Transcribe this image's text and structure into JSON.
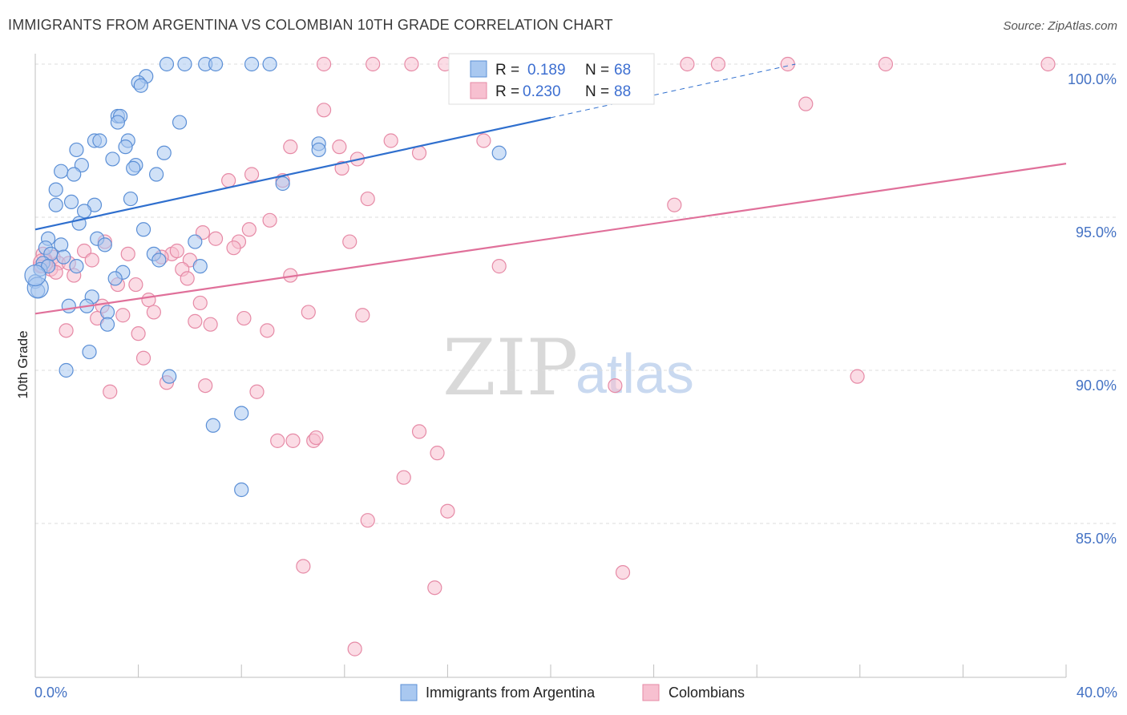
{
  "header": {
    "title": "IMMIGRANTS FROM ARGENTINA VS COLOMBIAN 10TH GRADE CORRELATION CHART",
    "source": "Source: ZipAtlas.com"
  },
  "watermark": {
    "zip": "ZIP",
    "atlas": "atlas"
  },
  "colors": {
    "blue_fill": "#a9c8f0",
    "blue_stroke": "#5b8fd6",
    "blue_line": "#2f6fce",
    "pink_fill": "#f7c0d0",
    "pink_stroke": "#e68aa6",
    "pink_line": "#e0709a",
    "tick_label": "#4472c4",
    "grid": "#dddddd"
  },
  "legend": {
    "r_label": "R =",
    "n_label": "N =",
    "series": [
      {
        "r": "0.189",
        "n": "68"
      },
      {
        "r": "0.230",
        "n": "88"
      }
    ]
  },
  "chart_data": {
    "type": "scatter",
    "title": "IMMIGRANTS FROM ARGENTINA VS COLOMBIAN 10TH GRADE CORRELATION CHART",
    "xlabel": "",
    "ylabel": "10th Grade",
    "xlim": [
      0,
      40
    ],
    "ylim": [
      80.5,
      100.7
    ],
    "x_tick_labels": [
      "0.0%",
      "40.0%"
    ],
    "y_ticks": [
      85,
      90,
      95,
      100
    ],
    "y_tick_labels": [
      "85.0%",
      "90.0%",
      "95.0%",
      "100.0%"
    ],
    "grid": true,
    "legend_position": "top-center",
    "series": [
      {
        "name": "Immigrants from Argentina",
        "trend": {
          "x": [
            0,
            20
          ],
          "y": [
            94.6,
            98.25
          ],
          "dashed_to": [
            29.5,
            100.0
          ]
        },
        "points": [
          [
            5.1,
            100
          ],
          [
            5.8,
            100
          ],
          [
            6.6,
            100
          ],
          [
            7.0,
            100
          ],
          [
            8.4,
            100
          ],
          [
            9.1,
            100
          ],
          [
            4.3,
            99.6
          ],
          [
            4.0,
            99.4
          ],
          [
            4.1,
            99.3
          ],
          [
            3.2,
            98.3
          ],
          [
            3.3,
            98.3
          ],
          [
            3.2,
            98.1
          ],
          [
            5.6,
            98.1
          ],
          [
            2.3,
            97.5
          ],
          [
            2.5,
            97.5
          ],
          [
            3.6,
            97.5
          ],
          [
            3.5,
            97.3
          ],
          [
            1.6,
            97.2
          ],
          [
            11.0,
            97.4
          ],
          [
            5.0,
            97.1
          ],
          [
            18.0,
            97.1
          ],
          [
            11.0,
            97.2
          ],
          [
            3.0,
            96.9
          ],
          [
            1.8,
            96.7
          ],
          [
            3.9,
            96.7
          ],
          [
            1.0,
            96.5
          ],
          [
            3.8,
            96.6
          ],
          [
            1.5,
            96.4
          ],
          [
            4.7,
            96.4
          ],
          [
            9.6,
            96.1
          ],
          [
            0.8,
            95.9
          ],
          [
            1.4,
            95.5
          ],
          [
            3.7,
            95.6
          ],
          [
            0.8,
            95.4
          ],
          [
            2.3,
            95.4
          ],
          [
            1.9,
            95.2
          ],
          [
            1.7,
            94.8
          ],
          [
            4.2,
            94.6
          ],
          [
            0.5,
            94.3
          ],
          [
            2.4,
            94.3
          ],
          [
            6.2,
            94.2
          ],
          [
            1.0,
            94.1
          ],
          [
            2.7,
            94.1
          ],
          [
            0.4,
            94.0
          ],
          [
            0.6,
            93.8
          ],
          [
            4.6,
            93.8
          ],
          [
            4.8,
            93.6
          ],
          [
            0.3,
            93.5
          ],
          [
            1.6,
            93.4
          ],
          [
            6.4,
            93.4
          ],
          [
            3.4,
            93.2
          ],
          [
            3.1,
            93.0
          ],
          [
            0.0,
            92.9
          ],
          [
            0.1,
            92.6
          ],
          [
            2.2,
            92.4
          ],
          [
            1.3,
            92.1
          ],
          [
            2.0,
            92.1
          ],
          [
            2.8,
            91.9
          ],
          [
            2.8,
            91.5
          ],
          [
            2.1,
            90.6
          ],
          [
            1.2,
            90.0
          ],
          [
            5.2,
            89.8
          ],
          [
            8.0,
            88.6
          ],
          [
            6.9,
            88.2
          ],
          [
            8.0,
            86.1
          ],
          [
            0.2,
            93.3
          ],
          [
            0.5,
            93.4
          ],
          [
            1.1,
            93.7
          ]
        ]
      },
      {
        "name": "Colombians",
        "trend": {
          "x": [
            0,
            40
          ],
          "y": [
            91.85,
            96.75
          ]
        },
        "points": [
          [
            11.2,
            100
          ],
          [
            13.1,
            100
          ],
          [
            14.6,
            100
          ],
          [
            15.9,
            100
          ],
          [
            23.7,
            100
          ],
          [
            25.3,
            100
          ],
          [
            26.5,
            100
          ],
          [
            29.2,
            100
          ],
          [
            33.0,
            100
          ],
          [
            39.3,
            100
          ],
          [
            11.2,
            98.5
          ],
          [
            29.9,
            98.7
          ],
          [
            9.9,
            97.3
          ],
          [
            11.8,
            97.3
          ],
          [
            13.8,
            97.5
          ],
          [
            17.4,
            97.5
          ],
          [
            14.9,
            97.1
          ],
          [
            12.5,
            96.9
          ],
          [
            11.9,
            96.6
          ],
          [
            8.4,
            96.4
          ],
          [
            7.5,
            96.2
          ],
          [
            9.6,
            96.2
          ],
          [
            12.9,
            95.6
          ],
          [
            24.8,
            95.4
          ],
          [
            9.1,
            94.9
          ],
          [
            8.3,
            94.6
          ],
          [
            6.5,
            94.5
          ],
          [
            7.0,
            94.3
          ],
          [
            7.9,
            94.2
          ],
          [
            12.2,
            94.2
          ],
          [
            2.7,
            94.2
          ],
          [
            7.7,
            94.0
          ],
          [
            1.9,
            93.9
          ],
          [
            3.6,
            93.8
          ],
          [
            5.3,
            93.8
          ],
          [
            5.5,
            93.9
          ],
          [
            4.9,
            93.7
          ],
          [
            0.7,
            93.7
          ],
          [
            2.2,
            93.6
          ],
          [
            6.0,
            93.6
          ],
          [
            18.0,
            93.4
          ],
          [
            5.7,
            93.3
          ],
          [
            0.9,
            93.5
          ],
          [
            1.3,
            93.5
          ],
          [
            0.2,
            93.4
          ],
          [
            0.4,
            93.6
          ],
          [
            0.6,
            93.3
          ],
          [
            1.5,
            93.1
          ],
          [
            5.9,
            93.0
          ],
          [
            9.9,
            93.1
          ],
          [
            3.2,
            92.8
          ],
          [
            3.9,
            92.8
          ],
          [
            4.4,
            92.3
          ],
          [
            6.4,
            92.2
          ],
          [
            2.6,
            92.1
          ],
          [
            4.6,
            91.9
          ],
          [
            10.6,
            91.9
          ],
          [
            12.7,
            91.8
          ],
          [
            3.4,
            91.8
          ],
          [
            8.1,
            91.7
          ],
          [
            2.4,
            91.7
          ],
          [
            6.2,
            91.6
          ],
          [
            6.8,
            91.5
          ],
          [
            9.0,
            91.3
          ],
          [
            1.2,
            91.3
          ],
          [
            4.0,
            91.2
          ],
          [
            4.2,
            90.4
          ],
          [
            31.9,
            89.8
          ],
          [
            5.1,
            89.6
          ],
          [
            22.5,
            89.5
          ],
          [
            6.6,
            89.5
          ],
          [
            2.9,
            89.3
          ],
          [
            8.6,
            89.3
          ],
          [
            14.9,
            88.0
          ],
          [
            9.4,
            87.7
          ],
          [
            10.0,
            87.7
          ],
          [
            10.8,
            87.7
          ],
          [
            10.9,
            87.8
          ],
          [
            15.6,
            87.3
          ],
          [
            14.3,
            86.5
          ],
          [
            16.0,
            85.4
          ],
          [
            12.9,
            85.1
          ],
          [
            10.4,
            83.6
          ],
          [
            22.8,
            83.4
          ],
          [
            15.5,
            82.9
          ],
          [
            12.4,
            80.9
          ],
          [
            0.3,
            93.8
          ],
          [
            0.8,
            93.2
          ]
        ]
      }
    ]
  }
}
